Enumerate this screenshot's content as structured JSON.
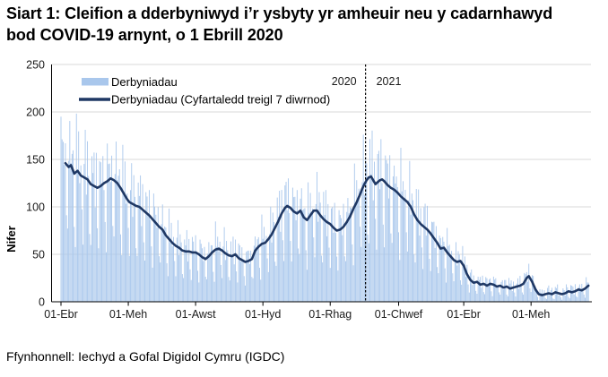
{
  "title": "Siart 1: Cleifion a dderbyniwyd i’r ysbyty yr amheuir neu y cadarnhawyd bod COVID-19 arnynt, o 1 Ebrill 2020",
  "footer": "Ffynhonnell: Iechyd a Gofal Digidol Cymru (IGDC)",
  "colors": {
    "bar": "#A9C7EC",
    "line": "#1F3864",
    "grid": "#D9D9D9",
    "axis": "#000000",
    "divider": "#000000",
    "tick_text": "#1a1a1a"
  },
  "chart_data": {
    "type": "bar",
    "title": "Siart 1: Cleifion a dderbyniwyd i’r ysbyty yr amheuir neu y cadarnhawyd bod COVID-19 arnynt, o 1 Ebrill 2020",
    "xlabel": "",
    "ylabel": "Nifer",
    "ylim": [
      0,
      250
    ],
    "yticks": [
      0,
      50,
      100,
      150,
      200,
      250
    ],
    "grid": true,
    "legend_position": "top-left",
    "x_tick_labels": [
      "01-Ebr",
      "01-Meh",
      "01-Awst",
      "01-Hyd",
      "01-Rhag",
      "01-Chwef",
      "01-Ebr",
      "01-Meh"
    ],
    "x_tick_days": [
      0,
      61,
      122,
      183,
      244,
      306,
      365,
      426
    ],
    "total_days": 478,
    "start_date_label": "01 Ebrill 2020",
    "year_divider_day": 276,
    "year_labels": [
      "2020",
      "2021"
    ],
    "series": [
      {
        "name": "Derbyniadau",
        "type": "bar"
      },
      {
        "name": "Derbyniadau  (Cyfartaledd treigl 7 diwrnod)",
        "type": "line"
      }
    ],
    "line_start_day": 4,
    "rolling_avg_points": [
      [
        0,
        150
      ],
      [
        2,
        148
      ],
      [
        4,
        146
      ],
      [
        7,
        142
      ],
      [
        9,
        144
      ],
      [
        12,
        135
      ],
      [
        15,
        138
      ],
      [
        18,
        133
      ],
      [
        21,
        131
      ],
      [
        24,
        129
      ],
      [
        27,
        124
      ],
      [
        30,
        122
      ],
      [
        33,
        120
      ],
      [
        36,
        122
      ],
      [
        39,
        125
      ],
      [
        42,
        127
      ],
      [
        45,
        130
      ],
      [
        48,
        128
      ],
      [
        51,
        125
      ],
      [
        54,
        120
      ],
      [
        57,
        114
      ],
      [
        60,
        108
      ],
      [
        62,
        105
      ],
      [
        65,
        103
      ],
      [
        68,
        101
      ],
      [
        71,
        100
      ],
      [
        74,
        97
      ],
      [
        77,
        94
      ],
      [
        80,
        91
      ],
      [
        83,
        87
      ],
      [
        86,
        83
      ],
      [
        89,
        79
      ],
      [
        92,
        76
      ],
      [
        95,
        70
      ],
      [
        98,
        66
      ],
      [
        101,
        62
      ],
      [
        104,
        59
      ],
      [
        107,
        57
      ],
      [
        110,
        54
      ],
      [
        113,
        53
      ],
      [
        116,
        53
      ],
      [
        119,
        52
      ],
      [
        122,
        52
      ],
      [
        125,
        50
      ],
      [
        128,
        47
      ],
      [
        131,
        45
      ],
      [
        134,
        48
      ],
      [
        137,
        52
      ],
      [
        140,
        55
      ],
      [
        143,
        56
      ],
      [
        146,
        54
      ],
      [
        149,
        51
      ],
      [
        152,
        49
      ],
      [
        155,
        48
      ],
      [
        158,
        50
      ],
      [
        161,
        46
      ],
      [
        164,
        44
      ],
      [
        167,
        42
      ],
      [
        170,
        43
      ],
      [
        173,
        45
      ],
      [
        176,
        54
      ],
      [
        179,
        58
      ],
      [
        182,
        61
      ],
      [
        185,
        62
      ],
      [
        188,
        66
      ],
      [
        191,
        71
      ],
      [
        194,
        78
      ],
      [
        197,
        85
      ],
      [
        200,
        93
      ],
      [
        203,
        99
      ],
      [
        205,
        101
      ],
      [
        208,
        99
      ],
      [
        211,
        95
      ],
      [
        214,
        93
      ],
      [
        217,
        96
      ],
      [
        220,
        89
      ],
      [
        223,
        86
      ],
      [
        226,
        91
      ],
      [
        229,
        96
      ],
      [
        232,
        96
      ],
      [
        235,
        91
      ],
      [
        238,
        87
      ],
      [
        241,
        84
      ],
      [
        244,
        82
      ],
      [
        247,
        78
      ],
      [
        250,
        75
      ],
      [
        253,
        76
      ],
      [
        256,
        79
      ],
      [
        259,
        84
      ],
      [
        262,
        90
      ],
      [
        265,
        98
      ],
      [
        268,
        105
      ],
      [
        271,
        113
      ],
      [
        273,
        119
      ],
      [
        275,
        124
      ],
      [
        277,
        128
      ],
      [
        279,
        131
      ],
      [
        281,
        132
      ],
      [
        283,
        128
      ],
      [
        285,
        124
      ],
      [
        287,
        126
      ],
      [
        289,
        128
      ],
      [
        291,
        129
      ],
      [
        293,
        127
      ],
      [
        296,
        123
      ],
      [
        299,
        120
      ],
      [
        302,
        118
      ],
      [
        305,
        115
      ],
      [
        308,
        111
      ],
      [
        311,
        108
      ],
      [
        314,
        105
      ],
      [
        317,
        100
      ],
      [
        320,
        92
      ],
      [
        323,
        86
      ],
      [
        326,
        82
      ],
      [
        329,
        79
      ],
      [
        332,
        76
      ],
      [
        335,
        72
      ],
      [
        338,
        67
      ],
      [
        341,
        62
      ],
      [
        344,
        56
      ],
      [
        347,
        57
      ],
      [
        350,
        52
      ],
      [
        353,
        48
      ],
      [
        356,
        44
      ],
      [
        359,
        42
      ],
      [
        362,
        43
      ],
      [
        365,
        38
      ],
      [
        368,
        29
      ],
      [
        371,
        23
      ],
      [
        374,
        20
      ],
      [
        377,
        21
      ],
      [
        380,
        18
      ],
      [
        383,
        19
      ],
      [
        386,
        17
      ],
      [
        389,
        19
      ],
      [
        392,
        18
      ],
      [
        395,
        16
      ],
      [
        398,
        17
      ],
      [
        401,
        15
      ],
      [
        404,
        16
      ],
      [
        407,
        14
      ],
      [
        410,
        15
      ],
      [
        413,
        16
      ],
      [
        416,
        17
      ],
      [
        419,
        19
      ],
      [
        422,
        25
      ],
      [
        424,
        27
      ],
      [
        427,
        21
      ],
      [
        430,
        13
      ],
      [
        433,
        8
      ],
      [
        436,
        7
      ],
      [
        439,
        8
      ],
      [
        442,
        9
      ],
      [
        445,
        8
      ],
      [
        448,
        10
      ],
      [
        451,
        9
      ],
      [
        454,
        8
      ],
      [
        457,
        9
      ],
      [
        460,
        11
      ],
      [
        463,
        10
      ],
      [
        466,
        11
      ],
      [
        469,
        13
      ],
      [
        472,
        12
      ],
      [
        475,
        14
      ],
      [
        478,
        17
      ]
    ],
    "bar_week_pattern": [
      1.3,
      1.05,
      1.22,
      0.92,
      1.15,
      0.68,
      0.5,
      1.1,
      1.28,
      0.98,
      1.18,
      1.02,
      0.62,
      0.45
    ],
    "bar_clamp": [
      1.5,
      206
    ]
  }
}
